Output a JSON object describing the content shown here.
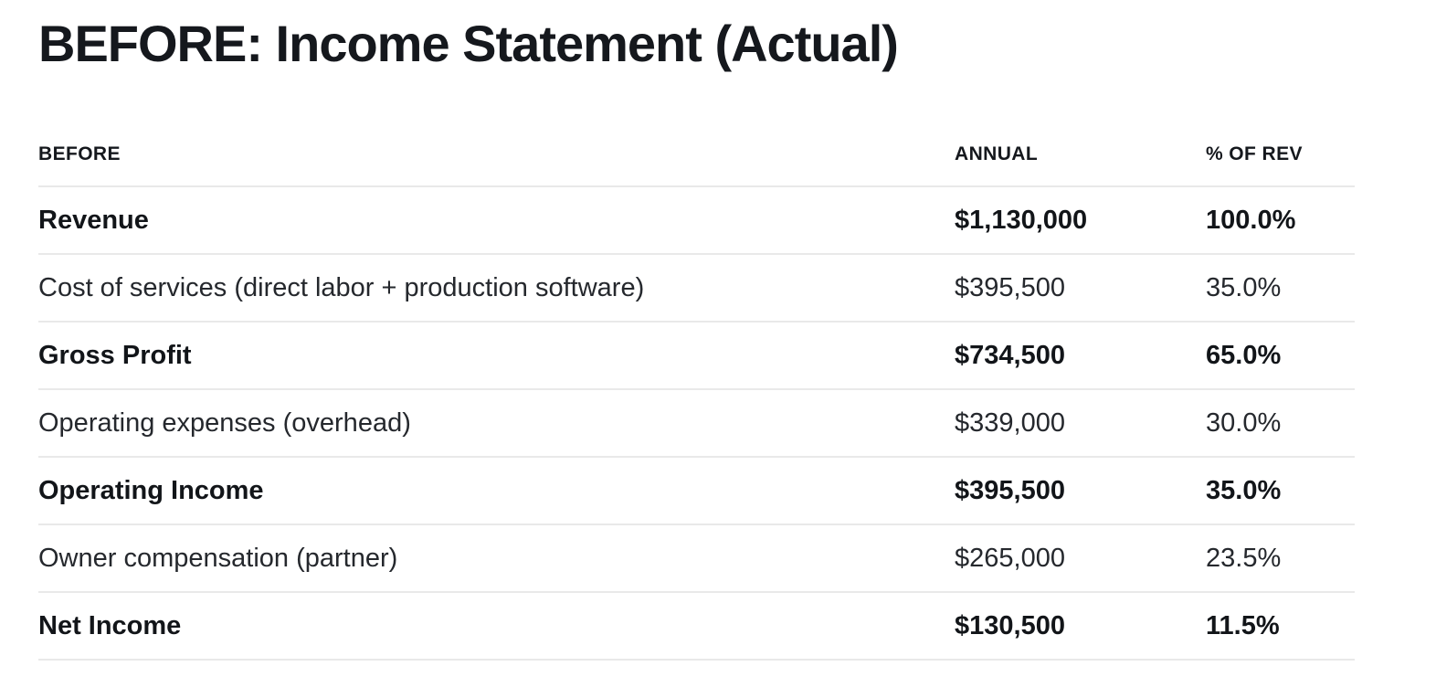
{
  "page": {
    "title": "BEFORE: Income Statement (Actual)"
  },
  "table": {
    "columns": [
      "BEFORE",
      "ANNUAL",
      "% OF REV"
    ],
    "rows": [
      {
        "label": "Revenue",
        "annual": "$1,130,000",
        "pct": "100.0%",
        "emphasis": true
      },
      {
        "label": "Cost of services (direct labor + production software)",
        "annual": "$395,500",
        "pct": "35.0%",
        "emphasis": false
      },
      {
        "label": "Gross Profit",
        "annual": "$734,500",
        "pct": "65.0%",
        "emphasis": true
      },
      {
        "label": "Operating expenses (overhead)",
        "annual": "$339,000",
        "pct": "30.0%",
        "emphasis": false
      },
      {
        "label": "Operating Income",
        "annual": "$395,500",
        "pct": "35.0%",
        "emphasis": true
      },
      {
        "label": "Owner compensation (partner)",
        "annual": "$265,000",
        "pct": "23.5%",
        "emphasis": false
      },
      {
        "label": "Net Income",
        "annual": "$130,500",
        "pct": "11.5%",
        "emphasis": true
      }
    ]
  },
  "colors": {
    "background": "#ffffff",
    "text_heading": "#15181d",
    "text_body": "#25282d",
    "text_emphasis": "#121519",
    "divider": "#e9e9e9"
  }
}
